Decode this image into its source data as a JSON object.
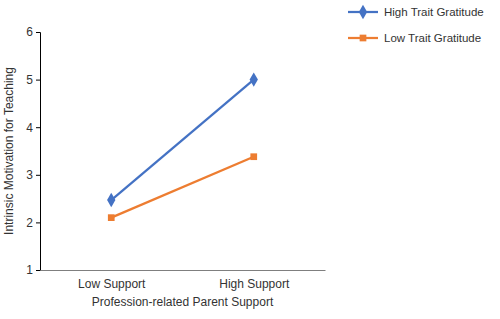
{
  "chart_data": {
    "type": "line",
    "x_label": "Profession-related Parent Support",
    "y_label": "Intrinsic Motivation for Teaching",
    "categories": [
      "Low Support",
      "High Support"
    ],
    "series": [
      {
        "name": "High Trait Gratitude",
        "color": "#4472c4",
        "marker": "diamond",
        "values": [
          2.47,
          5.0
        ]
      },
      {
        "name": "Low Trait Gratitude",
        "color": "#ed7d31",
        "marker": "square",
        "values": [
          2.1,
          3.38
        ]
      }
    ],
    "ylim": [
      1,
      6
    ],
    "yticks": [
      1,
      2,
      3,
      4,
      5,
      6
    ],
    "grid": false,
    "legend": "top-right"
  }
}
